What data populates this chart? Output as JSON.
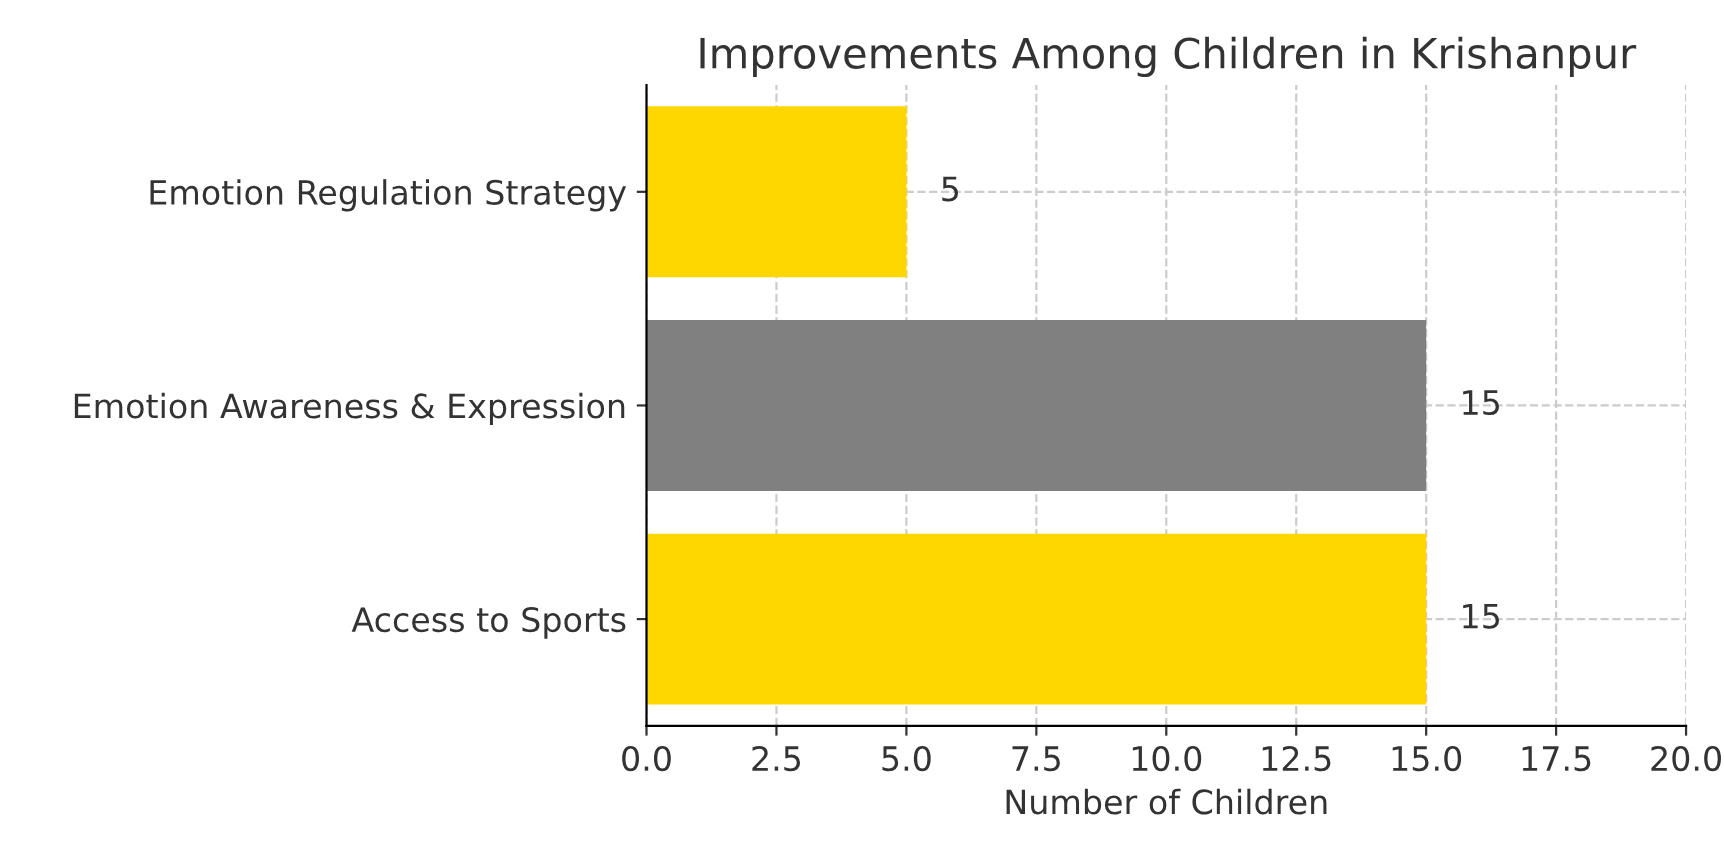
{
  "chart_data": {
    "type": "bar",
    "orientation": "horizontal",
    "title": "Improvements Among Children in Krishanpur",
    "xlabel": "Number of Children",
    "categories": [
      "Emotion Regulation Strategy",
      "Emotion Awareness & Expression",
      "Access to Sports"
    ],
    "values": [
      5,
      15,
      15
    ],
    "colors": [
      "#ffd700",
      "#808080",
      "#ffd700"
    ],
    "xlim": [
      0,
      20
    ],
    "xticks": [
      {
        "value": 0,
        "label": "0.0"
      },
      {
        "value": 2.5,
        "label": "2.5"
      },
      {
        "value": 5,
        "label": "5.0"
      },
      {
        "value": 7.5,
        "label": "7.5"
      },
      {
        "value": 10,
        "label": "10.0"
      },
      {
        "value": 12.5,
        "label": "12.5"
      },
      {
        "value": 15,
        "label": "15.0"
      },
      {
        "value": 17.5,
        "label": "17.5"
      },
      {
        "value": 20,
        "label": "20.0"
      }
    ],
    "grid": true,
    "line_style": "dashed",
    "data_labels": true
  }
}
